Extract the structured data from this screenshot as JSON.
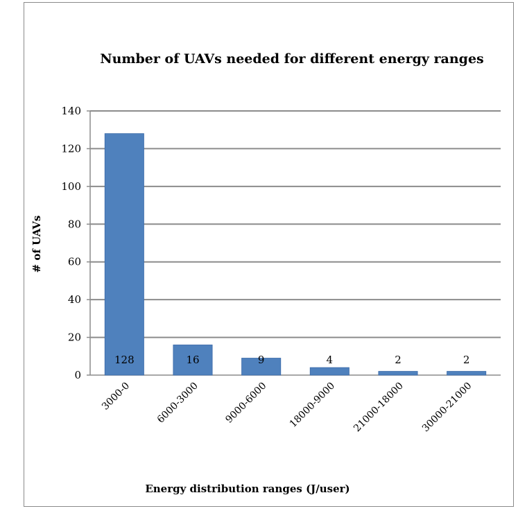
{
  "chart_data": {
    "type": "bar",
    "title": "Number of UAVs needed for different energy ranges",
    "xlabel": "Energy distribution ranges (J/user)",
    "ylabel": "# of UAVs",
    "categories": [
      "3000-0",
      "6000-3000",
      "9000-6000",
      "18000-9000",
      "21000-18000",
      "30000-21000"
    ],
    "values": [
      128,
      16,
      9,
      4,
      2,
      2
    ],
    "data_labels": [
      "128",
      "16",
      "9",
      "4",
      "2",
      "2"
    ],
    "yticks": [
      "0",
      "20",
      "40",
      "60",
      "80",
      "100",
      "120",
      "140"
    ],
    "ylim": [
      0,
      140
    ],
    "grid": true,
    "legend": "none",
    "colors": {
      "bar": "#4f81bd",
      "bar_edge": "#3b6aa8",
      "grid": "#8c8c8c"
    }
  }
}
